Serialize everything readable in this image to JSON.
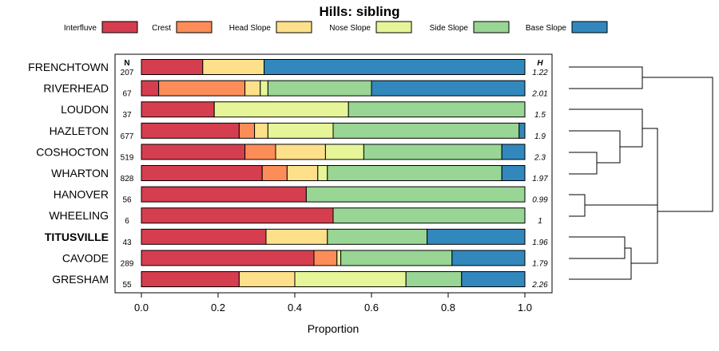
{
  "chart_data": {
    "type": "bar",
    "stacked": true,
    "orientation": "horizontal",
    "title": "Hills: sibling",
    "xlabel": "Proportion",
    "xlim": [
      0,
      1
    ],
    "xticks": [
      "0.0",
      "0.2",
      "0.4",
      "0.6",
      "0.8",
      "1.0"
    ],
    "n_header": "N",
    "h_header": "H",
    "legend": [
      {
        "name": "Interfluve",
        "color": "#D53E4F"
      },
      {
        "name": "Crest",
        "color": "#FC8D59"
      },
      {
        "name": "Head Slope",
        "color": "#FEE08B"
      },
      {
        "name": "Nose Slope",
        "color": "#E6F598"
      },
      {
        "name": "Side Slope",
        "color": "#99D594"
      },
      {
        "name": "Base Slope",
        "color": "#3288BD"
      }
    ],
    "categories": [
      "FRENCHTOWN",
      "RIVERHEAD",
      "LOUDON",
      "HAZLETON",
      "COSHOCTON",
      "WHARTON",
      "HANOVER",
      "WHEELING",
      "TITUSVILLE",
      "CAVODE",
      "GRESHAM"
    ],
    "highlight": "TITUSVILLE",
    "n": [
      "207",
      "67",
      "37",
      "677",
      "519",
      "828",
      "56",
      "6",
      "43",
      "289",
      "55"
    ],
    "h": [
      "1.22",
      "2.01",
      "1.5",
      "1.9",
      "2.3",
      "1.97",
      "0.99",
      "1",
      "1.96",
      "1.79",
      "2.26"
    ],
    "series": [
      {
        "name": "Interfluve",
        "values": [
          0.16,
          0.045,
          0.19,
          0.255,
          0.27,
          0.315,
          0.43,
          0.5,
          0.325,
          0.45,
          0.255
        ]
      },
      {
        "name": "Crest",
        "values": [
          0.0,
          0.225,
          0.0,
          0.04,
          0.08,
          0.065,
          0.0,
          0.0,
          0.0,
          0.06,
          0.0
        ]
      },
      {
        "name": "Head Slope",
        "values": [
          0.16,
          0.04,
          0.0,
          0.035,
          0.13,
          0.08,
          0.0,
          0.0,
          0.16,
          0.0,
          0.145
        ]
      },
      {
        "name": "Nose Slope",
        "values": [
          0.0,
          0.02,
          0.35,
          0.17,
          0.1,
          0.025,
          0.0,
          0.0,
          0.0,
          0.01,
          0.29
        ]
      },
      {
        "name": "Side Slope",
        "values": [
          0.0,
          0.27,
          0.46,
          0.485,
          0.36,
          0.455,
          0.57,
          0.5,
          0.26,
          0.29,
          0.145
        ]
      },
      {
        "name": "Base Slope",
        "values": [
          0.68,
          0.4,
          0.0,
          0.015,
          0.06,
          0.06,
          0.0,
          0.0,
          0.255,
          0.19,
          0.165
        ]
      }
    ]
  }
}
